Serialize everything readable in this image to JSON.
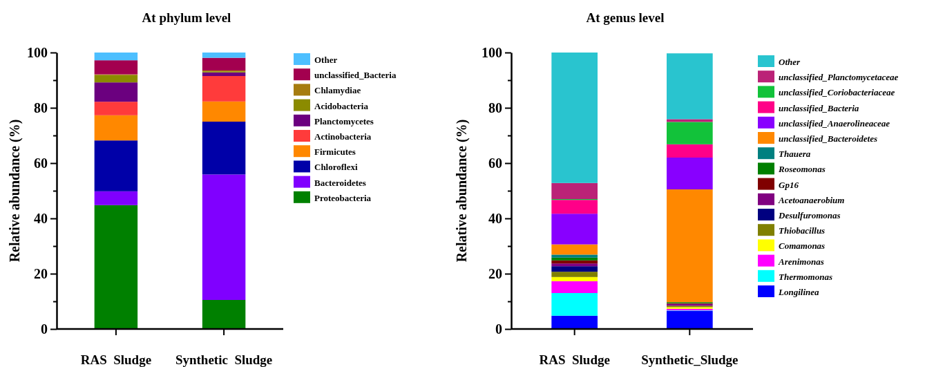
{
  "chart_data": [
    {
      "type": "bar",
      "title": "At phylum level",
      "ylabel": "Relative abundance (%)",
      "categories": [
        "RAS  Sludge",
        "Synthetic  Sludge"
      ],
      "stacked": true,
      "legend": "right",
      "ylim": [
        0,
        100
      ],
      "yticks": [
        0,
        {
          "value": 10,
          "label": null
        },
        20,
        {
          "value": 30,
          "label": null
        },
        40,
        {
          "value": 50,
          "label": null
        },
        60,
        {
          "value": 70,
          "label": null
        },
        80,
        {
          "value": 90,
          "label": null
        },
        100
      ],
      "series": [
        {
          "name": "Proteobacteria",
          "color": "#008000",
          "values": [
            44.8,
            10.5
          ]
        },
        {
          "name": "Bacteroidetes",
          "color": "#8000ff",
          "values": [
            5.0,
            45.4
          ]
        },
        {
          "name": "Chloroflexi",
          "color": "#0000a8",
          "values": [
            18.4,
            19.1
          ]
        },
        {
          "name": "Firmicutes",
          "color": "#ff8800",
          "values": [
            9.1,
            7.3
          ]
        },
        {
          "name": "Actinobacteria",
          "color": "#ff3b3b",
          "values": [
            4.9,
            9.2
          ]
        },
        {
          "name": "Planctomycetes",
          "color": "#6b007f",
          "values": [
            7.0,
            1.3
          ]
        },
        {
          "name": "Acidobacteria",
          "color": "#8b8b00",
          "values": [
            2.6,
            0.4
          ]
        },
        {
          "name": "Chlamydiae",
          "color": "#a67c10",
          "values": [
            0.3,
            0.3
          ]
        },
        {
          "name": "unclassified_Bacteria",
          "color": "#a3004f",
          "values": [
            5.1,
            4.6
          ]
        },
        {
          "name": "Other",
          "color": "#4dbfff",
          "values": [
            2.8,
            1.9
          ]
        }
      ]
    },
    {
      "type": "bar",
      "title": "At genus level",
      "ylabel": "Relative abundance (%)",
      "categories": [
        "RAS  Sludge",
        "Synthetic_Sludge"
      ],
      "stacked": true,
      "legend": "right",
      "ylim": [
        0,
        100
      ],
      "yticks": [
        0,
        {
          "value": 10,
          "label": null
        },
        20,
        {
          "value": 30,
          "label": null
        },
        40,
        {
          "value": 50,
          "label": null
        },
        60,
        {
          "value": 70,
          "label": null
        },
        80,
        {
          "value": 90,
          "label": null
        },
        100
      ],
      "series": [
        {
          "name": "Longilinea",
          "color": "#0000ff",
          "values": [
            4.8,
            6.5
          ]
        },
        {
          "name": "Thermomonas",
          "color": "#00ffff",
          "values": [
            8.2,
            0.2
          ]
        },
        {
          "name": "Arenimonas",
          "color": "#ff00ff",
          "values": [
            4.3,
            0.6
          ]
        },
        {
          "name": "Comamonas",
          "color": "#ffff00",
          "values": [
            1.5,
            0.6
          ]
        },
        {
          "name": "Thiobacillus",
          "color": "#808000",
          "values": [
            1.9,
            0.5
          ]
        },
        {
          "name": "Desulfuromonas",
          "color": "#000080",
          "values": [
            2.0,
            null
          ]
        },
        {
          "name": "Acetoanaerobium",
          "color": "#800080",
          "values": [
            1.0,
            0.7
          ]
        },
        {
          "name": "Gp16",
          "color": "#800000",
          "values": [
            1.1,
            0.2
          ]
        },
        {
          "name": "Roseomonas",
          "color": "#007f00",
          "values": [
            1.0,
            0.4
          ]
        },
        {
          "name": "Thauera",
          "color": "#008080",
          "values": [
            1.1,
            null
          ]
        },
        {
          "name": "unclassified_Bacteroidetes",
          "color": "#ff8800",
          "values": [
            3.7,
            40.8
          ]
        },
        {
          "name": "unclassified_Anaerolineaceae",
          "color": "#8800ff",
          "values": [
            11.1,
            11.5
          ]
        },
        {
          "name": "unclassified_Bacteria",
          "color": "#ff0088",
          "values": [
            5.0,
            4.8
          ]
        },
        {
          "name": "unclassified_Coriobacteriaceae",
          "color": "#12c23a",
          "values": [
            0.3,
            8.1
          ]
        },
        {
          "name": "unclassified_Planctomycetaceae",
          "color": "#bb2277",
          "values": [
            5.8,
            1.0
          ]
        },
        {
          "name": "Other",
          "color": "#29c4cf",
          "values": [
            47.2,
            23.8
          ]
        }
      ]
    }
  ]
}
